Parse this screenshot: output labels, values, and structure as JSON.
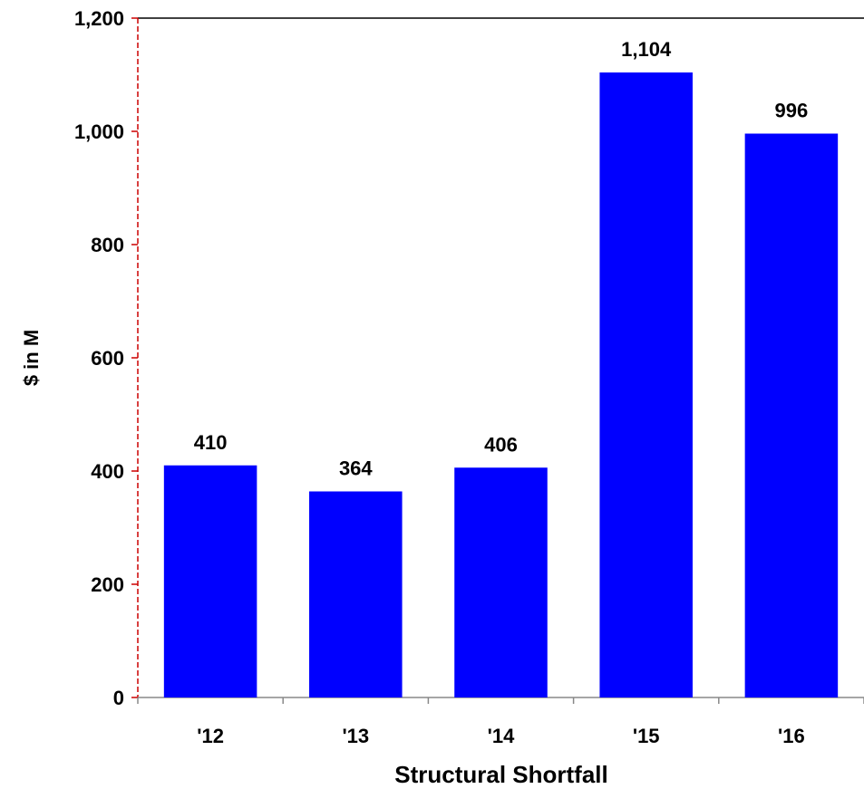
{
  "chart_data": {
    "type": "bar",
    "categories": [
      "'12",
      "'13",
      "'14",
      "'15",
      "'16"
    ],
    "values": [
      410,
      364,
      406,
      1104,
      996
    ],
    "value_labels": [
      "410",
      "364",
      "406",
      "1,104",
      "996"
    ],
    "xlabel": "Structural Shortfall",
    "ylabel": "$ in M",
    "ylim": [
      0,
      1200
    ],
    "yticks": [
      0,
      200,
      400,
      600,
      800,
      1000,
      1200
    ],
    "ytick_labels": [
      "0",
      "200",
      "400",
      "600",
      "800",
      "1,000",
      "1,200"
    ],
    "grid": false,
    "legend": "none",
    "bar_color": "#0000FF",
    "y_axis_color": "#CC0000"
  }
}
